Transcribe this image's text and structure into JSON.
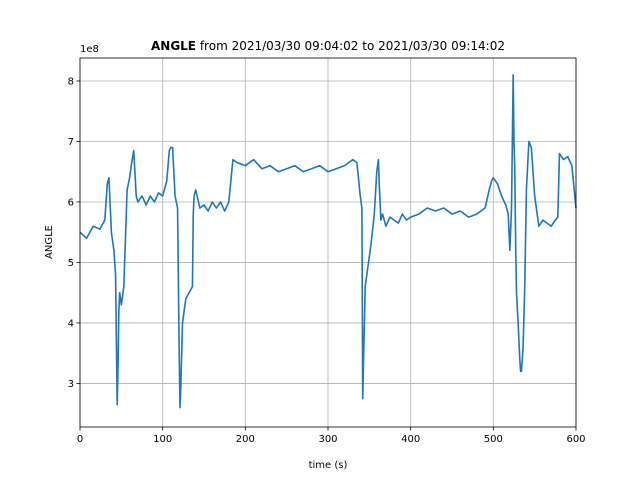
{
  "chart_data": {
    "type": "line",
    "title_bold": "ANGLE",
    "title_rest": " from 2021/03/30 09:04:02 to 2021/03/30 09:14:02",
    "xlabel": "time (s)",
    "ylabel": "ANGLE",
    "y_offset_label": "1e8",
    "xlim": [
      0,
      600
    ],
    "ylim": [
      2.28,
      8.38
    ],
    "x_ticks": [
      0,
      100,
      200,
      300,
      400,
      500,
      600
    ],
    "y_ticks": [
      3,
      4,
      5,
      6,
      7,
      8
    ],
    "grid": true,
    "line_color": "#1f77b4",
    "series": [
      {
        "x": [
          0,
          8,
          16,
          24,
          30,
          33,
          35,
          38,
          41,
          43,
          45,
          46,
          47,
          48,
          50,
          53,
          57,
          60,
          62,
          65,
          68,
          70,
          75,
          80,
          85,
          90,
          95,
          100,
          105,
          108,
          110,
          112,
          115,
          118,
          120,
          121,
          122,
          124,
          128,
          132,
          136,
          137,
          138,
          140,
          145,
          150,
          155,
          160,
          165,
          170,
          175,
          180,
          185,
          190,
          200,
          210,
          220,
          230,
          240,
          250,
          260,
          270,
          280,
          290,
          300,
          310,
          320,
          330,
          335,
          339,
          341,
          342,
          343,
          345,
          348,
          352,
          356,
          359,
          361,
          362,
          364,
          366,
          370,
          375,
          380,
          385,
          390,
          395,
          400,
          410,
          420,
          430,
          440,
          450,
          460,
          470,
          480,
          490,
          495,
          498,
          500,
          505,
          510,
          515,
          518,
          520,
          522,
          524,
          525,
          526,
          527,
          528,
          530,
          532,
          533,
          534,
          536,
          538,
          540,
          543,
          546,
          550,
          555,
          560,
          565,
          570,
          575,
          578,
          580,
          585,
          590,
          595,
          600
        ],
        "values": [
          5.5,
          5.4,
          5.6,
          5.55,
          5.7,
          6.3,
          6.4,
          5.5,
          5.2,
          4.8,
          2.65,
          3.3,
          4.2,
          4.5,
          4.3,
          4.6,
          6.2,
          6.4,
          6.6,
          6.85,
          6.1,
          6.0,
          6.1,
          5.95,
          6.1,
          6.0,
          6.15,
          6.1,
          6.35,
          6.85,
          6.9,
          6.9,
          6.1,
          5.9,
          3.5,
          2.6,
          3.0,
          4.0,
          4.4,
          4.5,
          4.6,
          5.8,
          6.1,
          6.2,
          5.9,
          5.95,
          5.85,
          6.0,
          5.9,
          6.0,
          5.85,
          6.0,
          6.7,
          6.65,
          6.6,
          6.7,
          6.55,
          6.6,
          6.5,
          6.55,
          6.6,
          6.5,
          6.55,
          6.6,
          6.5,
          6.55,
          6.6,
          6.7,
          6.65,
          6.1,
          5.9,
          2.75,
          3.4,
          4.6,
          4.9,
          5.3,
          5.8,
          6.5,
          6.7,
          6.3,
          5.7,
          5.8,
          5.6,
          5.75,
          5.7,
          5.65,
          5.8,
          5.7,
          5.75,
          5.8,
          5.9,
          5.85,
          5.9,
          5.8,
          5.85,
          5.75,
          5.8,
          5.9,
          6.2,
          6.35,
          6.4,
          6.3,
          6.1,
          5.95,
          5.8,
          5.2,
          5.9,
          8.1,
          7.0,
          6.5,
          5.3,
          4.5,
          4.0,
          3.4,
          3.2,
          3.2,
          3.6,
          4.6,
          6.2,
          7.0,
          6.9,
          6.1,
          5.6,
          5.7,
          5.65,
          5.6,
          5.7,
          5.75,
          6.8,
          6.7,
          6.75,
          6.6,
          5.9
        ]
      }
    ]
  }
}
